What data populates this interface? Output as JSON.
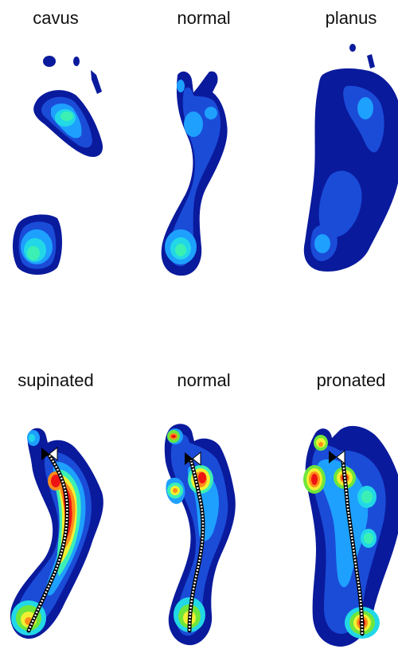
{
  "rows": [
    {
      "panels": [
        {
          "label": "cavus"
        },
        {
          "label": "normal"
        },
        {
          "label": "planus"
        }
      ]
    },
    {
      "panels": [
        {
          "label": "supinated"
        },
        {
          "label": "normal"
        },
        {
          "label": "pronated"
        }
      ]
    }
  ],
  "colors": {
    "navy": "#0a1a9c",
    "blue": "#1a4cd8",
    "sky": "#1ea0ff",
    "cyan": "#22d8e6",
    "mint": "#3cf0b4",
    "green": "#6ee63c",
    "yellow": "#f0f032",
    "orange": "#ff8c1a",
    "red": "#ee1414"
  }
}
